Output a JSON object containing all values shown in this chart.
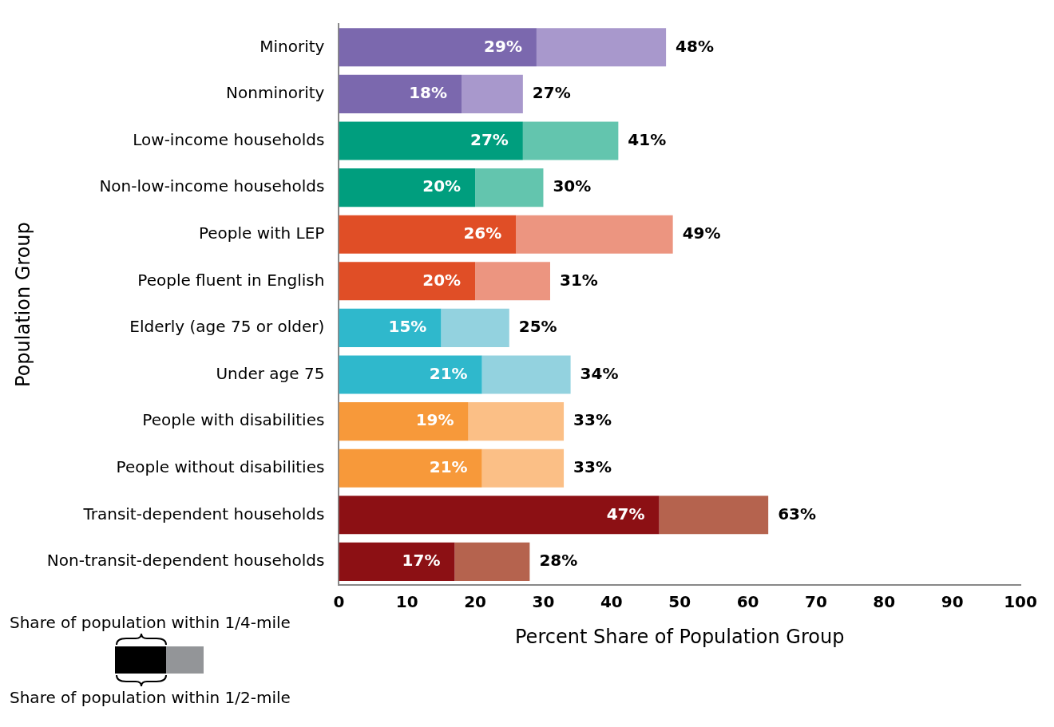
{
  "chart_data": {
    "type": "bar",
    "orientation": "horizontal",
    "stacked": true,
    "ylabel": "Population Group",
    "xlabel": "Percent Share of Population Group",
    "categories": [
      "Minority",
      "Nonminority",
      "Low-income households",
      "Non-low-income households",
      "People with LEP",
      "People fluent in English",
      "Elderly (age 75 or older)",
      "Under age 75",
      "People with disabilities",
      "People without disabilities",
      "Transit-dependent households",
      "Non-transit-dependent households"
    ],
    "series": [
      {
        "values": [
          29,
          18,
          27,
          20,
          26,
          20,
          15,
          21,
          19,
          21,
          47,
          17
        ],
        "value_labels": [
          "29%",
          "18%",
          "27%",
          "20%",
          "26%",
          "20%",
          "15%",
          "21%",
          "19%",
          "21%",
          "47%",
          "17%"
        ],
        "colors": [
          "#7b68ae",
          "#7b68ae",
          "#009e7e",
          "#009e7e",
          "#e04e26",
          "#e04e26",
          "#2fb8cc",
          "#2fb8cc",
          "#f7993a",
          "#f7993a",
          "#8c1014",
          "#8c1014"
        ]
      },
      {
        "values": [
          19,
          9,
          14,
          10,
          23,
          11,
          10,
          13,
          14,
          12,
          16,
          11
        ],
        "colors": [
          "#a898cc",
          "#a898cc",
          "#63c5ae",
          "#63c5ae",
          "#ec9580",
          "#ec9580",
          "#93d2df",
          "#93d2df",
          "#fbbf86",
          "#fbbf86",
          "#b5634e",
          "#b5634e"
        ]
      }
    ],
    "totals": [
      "48%",
      "27%",
      "41%",
      "30%",
      "49%",
      "31%",
      "25%",
      "34%",
      "33%",
      "33%",
      "63%",
      "28%"
    ],
    "annotations": [
      "Share of population within 1/4-mile",
      "Share of population within 1/2-mile"
    ],
    "xlim": [
      0,
      100
    ],
    "xticks": [
      0,
      10,
      20,
      30,
      40,
      50,
      60,
      70,
      80,
      90,
      100
    ],
    "grid": false
  }
}
